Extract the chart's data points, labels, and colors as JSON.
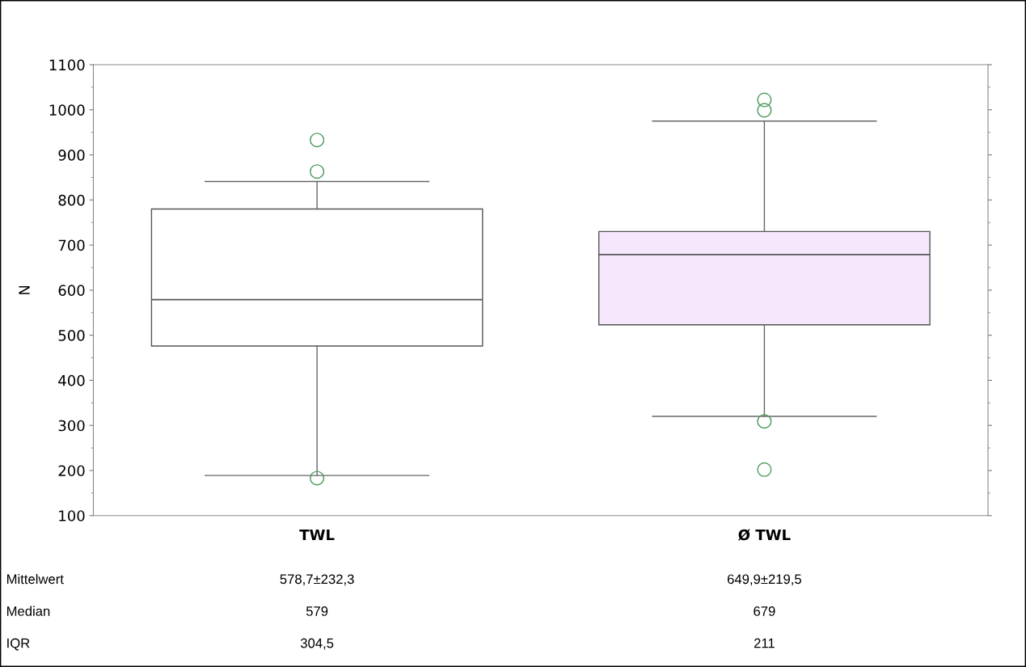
{
  "chart_data": {
    "type": "box",
    "ylabel": "N",
    "categories": [
      "TWL",
      "Ø TWL"
    ],
    "boxes": [
      {
        "low": 189,
        "q1": 476,
        "median": 579,
        "q3": 780,
        "high": 841,
        "outliers": [
          933,
          863,
          183
        ]
      },
      {
        "low": 320,
        "q1": 523,
        "median": 679,
        "q3": 730,
        "high": 975,
        "outliers": [
          1022,
          999,
          309,
          202
        ]
      }
    ],
    "colors": [
      "#ffffff",
      "#f5e8fc"
    ],
    "ylim": [
      100,
      1100
    ],
    "yticks": [
      100,
      200,
      300,
      400,
      500,
      600,
      700,
      800,
      900,
      1000,
      1100
    ],
    "grid": false,
    "annotations": [
      "Mittelwert",
      "578,7±232,3",
      "649,9±219,5",
      "Median",
      "579",
      "679",
      "IQR",
      "304,5",
      "211"
    ]
  }
}
